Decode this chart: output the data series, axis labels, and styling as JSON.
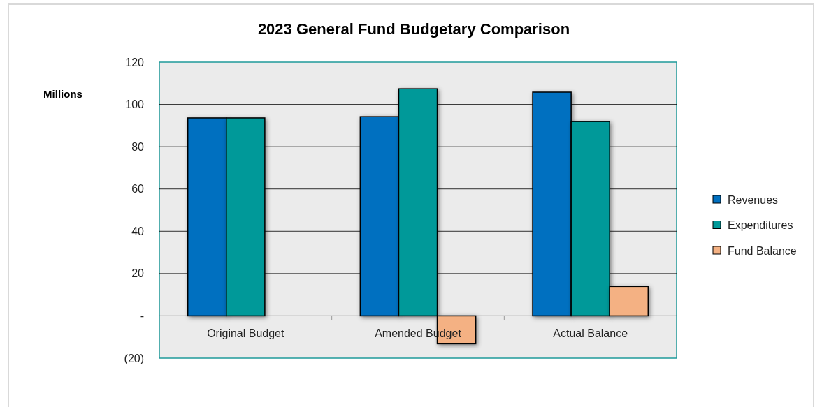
{
  "chart_data": {
    "type": "bar",
    "title": "2023 General Fund Budgetary Comparison",
    "ylabel": "Millions",
    "categories": [
      "Original Budget",
      "Amended Budget",
      "Actual Balance"
    ],
    "series": [
      {
        "name": "Revenues",
        "color": "#0070c0",
        "values": [
          93.6,
          94.2,
          105.8
        ]
      },
      {
        "name": "Expenditures",
        "color": "#009999",
        "values": [
          93.6,
          107.4,
          91.9
        ]
      },
      {
        "name": "Fund Balance",
        "color": "#f4b183",
        "values": [
          null,
          -13.2,
          13.9
        ]
      }
    ],
    "ylim": [
      -20,
      120
    ],
    "yticks": [
      {
        "value": -20,
        "label": "(20)"
      },
      {
        "value": 0,
        "label": "-"
      },
      20,
      40,
      60,
      80,
      100,
      120
    ],
    "grid": "y",
    "legend": "right"
  }
}
